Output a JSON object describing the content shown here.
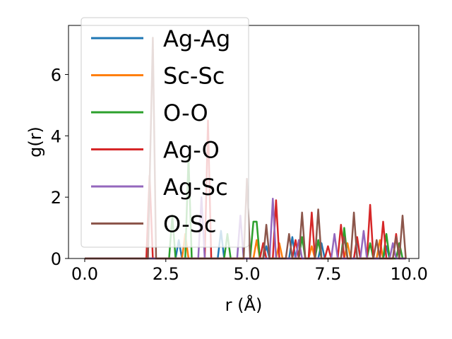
{
  "chart_data": {
    "type": "line",
    "title": "",
    "xlabel": "r (Å)",
    "ylabel": "g(r)",
    "xlim": [
      -0.5,
      10.3
    ],
    "ylim": [
      0,
      7.6
    ],
    "xticks": [
      0.0,
      2.5,
      5.0,
      7.5,
      10.0
    ],
    "xtick_labels": [
      "0.0",
      "2.5",
      "5.0",
      "7.5",
      "10.0"
    ],
    "yticks": [
      0,
      2,
      4,
      6
    ],
    "ytick_labels": [
      "0",
      "2",
      "4",
      "6"
    ],
    "grid": false,
    "legend_position": "top-left",
    "series": [
      {
        "name": "Ag-Ag",
        "color": "#1f77b4",
        "points": [
          [
            0,
            0
          ],
          [
            2.8,
            0
          ],
          [
            2.9,
            0.6
          ],
          [
            3.0,
            0
          ],
          [
            4.1,
            0
          ],
          [
            4.2,
            0.9
          ],
          [
            4.3,
            0
          ],
          [
            5.5,
            0
          ],
          [
            5.6,
            0.4
          ],
          [
            5.7,
            0
          ],
          [
            6.3,
            0
          ],
          [
            6.4,
            0.7
          ],
          [
            6.5,
            0
          ],
          [
            7.2,
            0
          ],
          [
            7.3,
            0.5
          ],
          [
            7.4,
            0
          ],
          [
            8.3,
            0
          ],
          [
            8.4,
            0.6
          ],
          [
            8.5,
            0
          ],
          [
            9.2,
            0
          ],
          [
            9.3,
            0.4
          ],
          [
            9.4,
            0
          ],
          [
            9.9,
            0
          ]
        ]
      },
      {
        "name": "Sc-Sc",
        "color": "#ff7f0e",
        "points": [
          [
            0,
            0
          ],
          [
            3.0,
            0
          ],
          [
            3.1,
            0.8
          ],
          [
            3.2,
            0
          ],
          [
            5.2,
            0
          ],
          [
            5.3,
            0.6
          ],
          [
            5.4,
            0
          ],
          [
            5.9,
            0
          ],
          [
            6.0,
            0.5
          ],
          [
            6.1,
            0
          ],
          [
            6.9,
            0
          ],
          [
            7.0,
            0.4
          ],
          [
            7.1,
            0
          ],
          [
            8.0,
            0
          ],
          [
            8.1,
            0.5
          ],
          [
            8.2,
            0
          ],
          [
            9.0,
            0
          ],
          [
            9.1,
            0.6
          ],
          [
            9.2,
            0
          ],
          [
            9.9,
            0
          ]
        ]
      },
      {
        "name": "O-O",
        "color": "#2ca02c",
        "points": [
          [
            0,
            0
          ],
          [
            2.6,
            0
          ],
          [
            2.7,
            1.4
          ],
          [
            2.8,
            0
          ],
          [
            3.1,
            0
          ],
          [
            3.2,
            3.3
          ],
          [
            3.3,
            0
          ],
          [
            4.3,
            0
          ],
          [
            4.4,
            0.8
          ],
          [
            4.5,
            0
          ],
          [
            5.1,
            0
          ],
          [
            5.2,
            1.2
          ],
          [
            5.3,
            1.2
          ],
          [
            5.4,
            0
          ],
          [
            6.6,
            0
          ],
          [
            6.7,
            0.7
          ],
          [
            6.8,
            0
          ],
          [
            7.1,
            0
          ],
          [
            7.2,
            0.6
          ],
          [
            7.3,
            0
          ],
          [
            7.9,
            0
          ],
          [
            8.0,
            1.0
          ],
          [
            8.1,
            0
          ],
          [
            8.7,
            0
          ],
          [
            8.8,
            0.5
          ],
          [
            8.9,
            0
          ],
          [
            9.2,
            0
          ],
          [
            9.3,
            0.8
          ],
          [
            9.4,
            0
          ],
          [
            9.6,
            0
          ],
          [
            9.7,
            0.5
          ],
          [
            9.8,
            0
          ],
          [
            9.9,
            0
          ]
        ]
      },
      {
        "name": "Ag-O",
        "color": "#d62728",
        "points": [
          [
            0,
            0
          ],
          [
            1.9,
            0
          ],
          [
            2.0,
            2.7
          ],
          [
            2.1,
            0
          ],
          [
            3.7,
            0
          ],
          [
            3.8,
            4.5
          ],
          [
            3.9,
            0
          ],
          [
            5.4,
            0
          ],
          [
            5.5,
            0.5
          ],
          [
            5.6,
            0
          ],
          [
            5.8,
            0
          ],
          [
            5.9,
            1.9
          ],
          [
            6.0,
            0
          ],
          [
            6.4,
            0
          ],
          [
            6.5,
            0.6
          ],
          [
            6.6,
            0
          ],
          [
            6.9,
            0
          ],
          [
            7.0,
            1.5
          ],
          [
            7.1,
            0
          ],
          [
            7.4,
            0
          ],
          [
            7.5,
            0.4
          ],
          [
            7.6,
            0
          ],
          [
            7.8,
            0
          ],
          [
            7.9,
            1.1
          ],
          [
            8.0,
            0
          ],
          [
            8.3,
            0
          ],
          [
            8.4,
            0.7
          ],
          [
            8.5,
            0
          ],
          [
            8.7,
            0
          ],
          [
            8.8,
            1.75
          ],
          [
            8.9,
            0
          ],
          [
            9.1,
            0
          ],
          [
            9.2,
            1.2
          ],
          [
            9.3,
            0
          ],
          [
            9.5,
            0
          ],
          [
            9.6,
            0.8
          ],
          [
            9.7,
            0
          ],
          [
            9.9,
            0
          ]
        ]
      },
      {
        "name": "Ag-Sc",
        "color": "#9467bd",
        "points": [
          [
            0,
            0
          ],
          [
            3.5,
            0
          ],
          [
            3.6,
            2.0
          ],
          [
            3.7,
            0
          ],
          [
            4.7,
            0
          ],
          [
            4.8,
            1.4
          ],
          [
            4.9,
            0
          ],
          [
            5.7,
            0
          ],
          [
            5.8,
            1.95
          ],
          [
            5.9,
            0
          ],
          [
            6.5,
            0
          ],
          [
            6.6,
            0.6
          ],
          [
            6.7,
            0
          ],
          [
            7.6,
            0
          ],
          [
            7.7,
            0.8
          ],
          [
            7.8,
            0
          ],
          [
            8.5,
            0
          ],
          [
            8.6,
            0.9
          ],
          [
            8.7,
            0
          ],
          [
            9.4,
            0
          ],
          [
            9.5,
            0.5
          ],
          [
            9.6,
            0
          ],
          [
            9.9,
            0
          ]
        ]
      },
      {
        "name": "O-Sc",
        "color": "#8c564b",
        "points": [
          [
            0,
            0
          ],
          [
            1.95,
            0
          ],
          [
            2.1,
            7.2
          ],
          [
            2.2,
            0
          ],
          [
            4.9,
            0
          ],
          [
            5.0,
            2.6
          ],
          [
            5.1,
            0
          ],
          [
            5.5,
            0
          ],
          [
            5.6,
            1.1
          ],
          [
            5.7,
            0
          ],
          [
            6.2,
            0
          ],
          [
            6.3,
            0.8
          ],
          [
            6.4,
            0
          ],
          [
            6.6,
            0
          ],
          [
            6.7,
            1.5
          ],
          [
            6.8,
            0
          ],
          [
            7.1,
            0
          ],
          [
            7.2,
            1.6
          ],
          [
            7.3,
            0
          ],
          [
            7.9,
            0
          ],
          [
            8.0,
            0.7
          ],
          [
            8.1,
            0
          ],
          [
            8.2,
            0
          ],
          [
            8.3,
            1.5
          ],
          [
            8.4,
            0
          ],
          [
            8.9,
            0
          ],
          [
            9.0,
            0.6
          ],
          [
            9.1,
            0
          ],
          [
            9.5,
            0
          ],
          [
            9.6,
            0.7
          ],
          [
            9.7,
            0
          ],
          [
            9.8,
            1.4
          ],
          [
            9.9,
            0
          ]
        ]
      }
    ]
  }
}
